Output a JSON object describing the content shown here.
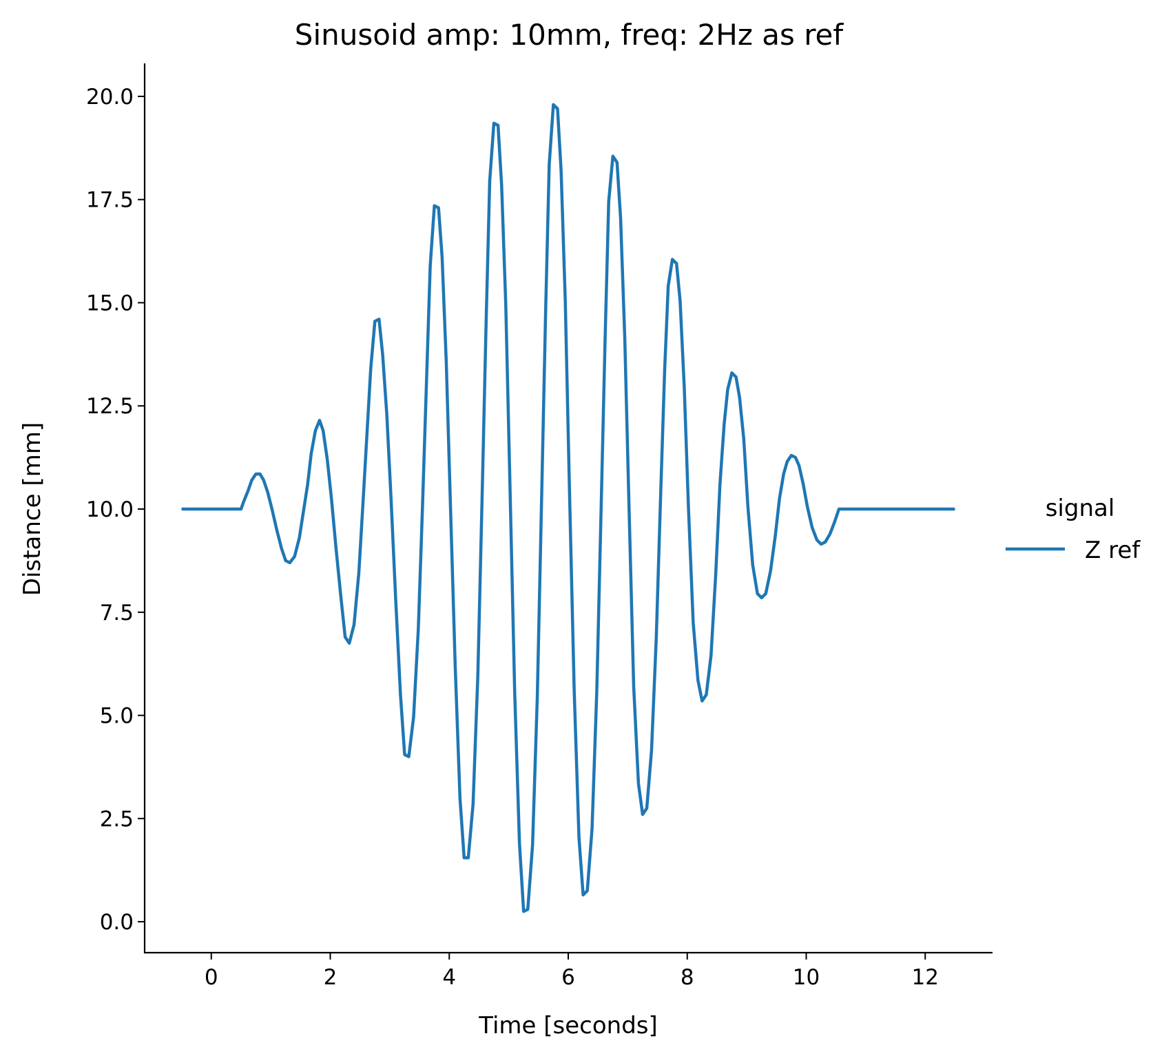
{
  "chart_data": {
    "type": "line",
    "title": "Sinusoid amp: 10mm, freq: 2Hz as ref",
    "xlabel": "Time [seconds]",
    "ylabel": "Distance [mm]",
    "xlim": [
      -1.12,
      13.12
    ],
    "ylim": [
      -0.75,
      20.8
    ],
    "xticks": [
      0,
      2,
      4,
      6,
      8,
      10,
      12
    ],
    "xtick_labels": [
      "0",
      "2",
      "4",
      "6",
      "8",
      "10",
      "12"
    ],
    "yticks": [
      0,
      2.5,
      5,
      7.5,
      10,
      12.5,
      15,
      17.5,
      20
    ],
    "ytick_labels": [
      "0.0",
      "2.5",
      "5.0",
      "7.5",
      "10.0",
      "12.5",
      "15.0",
      "17.5",
      "20.0"
    ],
    "grid": false,
    "legend": {
      "title": "signal",
      "placement": "right, outside plot"
    },
    "series": [
      {
        "name": "Z ref",
        "color": "#1f77b4",
        "x": [
          -0.5,
          0.5,
          0.55,
          0.62,
          0.68,
          0.75,
          0.82,
          0.88,
          0.95,
          1.02,
          1.1,
          1.18,
          1.25,
          1.32,
          1.4,
          1.48,
          1.55,
          1.62,
          1.68,
          1.75,
          1.82,
          1.88,
          1.95,
          2.02,
          2.1,
          2.18,
          2.25,
          2.32,
          2.4,
          2.48,
          2.55,
          2.62,
          2.68,
          2.75,
          2.82,
          2.88,
          2.95,
          3.02,
          3.1,
          3.18,
          3.25,
          3.32,
          3.4,
          3.48,
          3.55,
          3.62,
          3.68,
          3.75,
          3.82,
          3.88,
          3.95,
          4.02,
          4.1,
          4.18,
          4.25,
          4.32,
          4.4,
          4.48,
          4.55,
          4.62,
          4.68,
          4.75,
          4.82,
          4.88,
          4.95,
          5.02,
          5.1,
          5.18,
          5.25,
          5.32,
          5.4,
          5.48,
          5.55,
          5.62,
          5.68,
          5.75,
          5.82,
          5.88,
          5.95,
          6.02,
          6.1,
          6.18,
          6.25,
          6.32,
          6.4,
          6.48,
          6.55,
          6.62,
          6.68,
          6.75,
          6.82,
          6.88,
          6.95,
          7.02,
          7.1,
          7.18,
          7.25,
          7.32,
          7.4,
          7.48,
          7.55,
          7.62,
          7.68,
          7.75,
          7.82,
          7.88,
          7.95,
          8.02,
          8.1,
          8.18,
          8.25,
          8.32,
          8.4,
          8.48,
          8.55,
          8.62,
          8.68,
          8.75,
          8.82,
          8.88,
          8.95,
          9.02,
          9.1,
          9.18,
          9.25,
          9.32,
          9.4,
          9.48,
          9.55,
          9.62,
          9.68,
          9.75,
          9.82,
          9.88,
          9.95,
          10.02,
          10.1,
          10.18,
          10.25,
          10.32,
          10.4,
          10.48,
          10.55,
          12.5
        ],
        "y": [
          10.0,
          10.0,
          10.2,
          10.45,
          10.7,
          10.85,
          10.85,
          10.7,
          10.4,
          10.0,
          9.5,
          9.05,
          8.75,
          8.7,
          8.85,
          9.3,
          9.95,
          10.6,
          11.35,
          11.9,
          12.15,
          11.9,
          11.2,
          10.25,
          9.0,
          7.85,
          6.9,
          6.75,
          7.2,
          8.45,
          10.15,
          11.9,
          13.4,
          14.55,
          14.6,
          13.75,
          12.3,
          10.3,
          7.8,
          5.5,
          4.05,
          4.0,
          4.95,
          7.1,
          10.05,
          13.2,
          15.9,
          17.35,
          17.3,
          16.1,
          13.55,
          10.1,
          6.2,
          3.0,
          1.55,
          1.55,
          2.85,
          5.95,
          10.15,
          14.55,
          17.95,
          19.35,
          19.3,
          17.85,
          14.95,
          10.6,
          5.55,
          1.9,
          0.25,
          0.3,
          1.85,
          5.45,
          10.1,
          14.8,
          18.35,
          19.8,
          19.7,
          18.2,
          15.05,
          10.5,
          5.6,
          2.05,
          0.65,
          0.75,
          2.25,
          5.6,
          9.85,
          14.15,
          17.45,
          18.55,
          18.4,
          17.05,
          14.15,
          10.15,
          5.7,
          3.35,
          2.6,
          2.75,
          4.15,
          6.9,
          10.2,
          13.35,
          15.4,
          16.05,
          15.95,
          15.05,
          12.95,
          10.05,
          7.25,
          5.85,
          5.35,
          5.5,
          6.45,
          8.45,
          10.6,
          12.05,
          12.9,
          13.3,
          13.2,
          12.7,
          11.7,
          10.05,
          8.65,
          7.95,
          7.85,
          7.95,
          8.5,
          9.35,
          10.25,
          10.85,
          11.15,
          11.3,
          11.25,
          11.05,
          10.6,
          10.05,
          9.55,
          9.25,
          9.15,
          9.2,
          9.4,
          9.7,
          10.0,
          10.0
        ]
      }
    ]
  }
}
